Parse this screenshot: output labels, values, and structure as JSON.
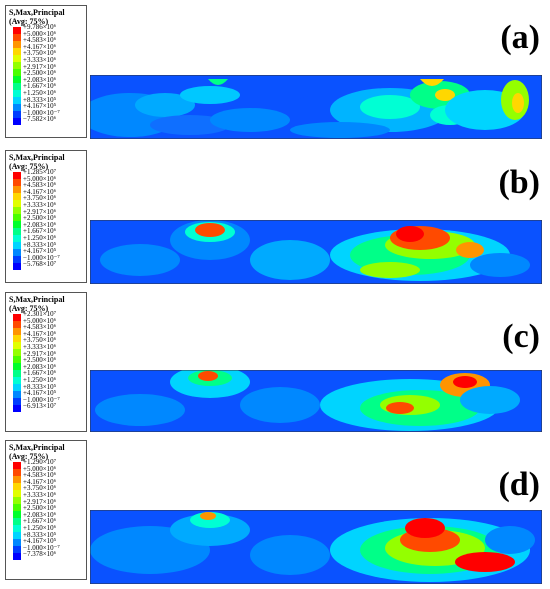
{
  "legend_title_1": "S,Max,Principal",
  "legend_title_2": "(Avg: 75%)",
  "legend_colors": [
    "#ff0000",
    "#ff4a00",
    "#ff9400",
    "#ffd700",
    "#e1ff00",
    "#94ff00",
    "#4aff00",
    "#00ff2a",
    "#00ff88",
    "#00ffd4",
    "#00d4ff",
    "#0088ff",
    "#003dff",
    "#0000ff",
    "#41e5ff"
  ],
  "panels": [
    {
      "label": "(a)",
      "legend_values": [
        "+9.786×10⁶",
        "+5.000×10⁶",
        "+4.583×10⁶",
        "+4.167×10⁶",
        "+3.750×10⁶",
        "+3.333×10⁶",
        "+2.917×10⁶",
        "+2.500×10⁶",
        "+2.083×10⁶",
        "+1.667×10⁶",
        "+1.250×10⁶",
        "+8.333×10⁵",
        "+4.167×10⁵",
        "−1.000×10⁻⁷",
        "−7.582×10⁶"
      ]
    },
    {
      "label": "(b)",
      "legend_values": [
        "+1.285×10⁷",
        "+5.000×10⁶",
        "+4.583×10⁶",
        "+4.167×10⁶",
        "+3.750×10⁶",
        "+3.333×10⁶",
        "+2.917×10⁶",
        "+2.500×10⁶",
        "+2.083×10⁶",
        "+1.667×10⁶",
        "+1.250×10⁶",
        "+8.333×10⁵",
        "+4.167×10⁵",
        "−1.000×10⁻⁷",
        "−5.768×10⁷"
      ]
    },
    {
      "label": "(c)",
      "legend_values": [
        "+2.301×10⁷",
        "+5.000×10⁶",
        "+4.583×10⁶",
        "+4.167×10⁶",
        "+3.750×10⁶",
        "+3.333×10⁶",
        "+2.917×10⁶",
        "+2.500×10⁶",
        "+2.083×10⁶",
        "+1.667×10⁶",
        "+1.250×10⁶",
        "+8.333×10⁵",
        "+4.167×10⁵",
        "−1.000×10⁻⁷",
        "−6.913×10⁷"
      ]
    },
    {
      "label": "(d)",
      "legend_values": [
        "+1.290×10⁷",
        "+5.000×10⁶",
        "+4.583×10⁶",
        "+4.167×10⁶",
        "+3.750×10⁶",
        "+3.333×10⁶",
        "+2.917×10⁶",
        "+2.500×10⁶",
        "+2.083×10⁶",
        "+1.667×10⁶",
        "+1.250×10⁶",
        "+8.333×10⁵",
        "+4.167×10⁵",
        "−1.000×10⁻⁷",
        "−7.378×10⁶"
      ]
    }
  ]
}
